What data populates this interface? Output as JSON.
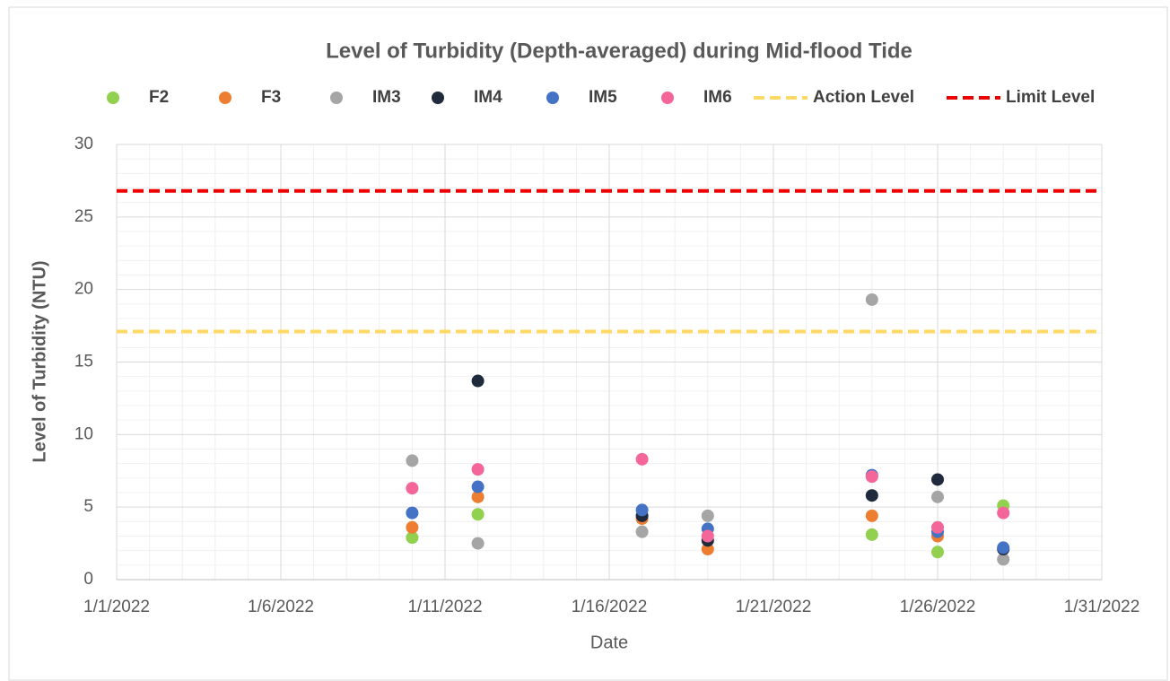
{
  "chart_data": {
    "type": "scatter",
    "title": "Level of Turbidity (Depth-averaged) during Mid-flood Tide",
    "x_label": "Date",
    "y_label": "Level of Turbidity (NTU)",
    "x": [
      "1/10/2022",
      "1/12/2022",
      "1/17/2022",
      "1/19/2022",
      "1/24/2022",
      "1/26/2022",
      "1/28/2022"
    ],
    "series": [
      {
        "name": "F2",
        "color": "#92d050",
        "values": [
          2.9,
          4.5,
          null,
          null,
          3.1,
          1.9,
          5.1
        ]
      },
      {
        "name": "F3",
        "color": "#ed7d31",
        "values": [
          3.6,
          5.7,
          4.2,
          2.1,
          4.4,
          3.0,
          null
        ]
      },
      {
        "name": "IM3",
        "color": "#a5a5a5",
        "values": [
          8.2,
          2.5,
          3.3,
          4.4,
          19.3,
          5.7,
          1.4
        ]
      },
      {
        "name": "IM4",
        "color": "#1f2a3c",
        "values": [
          null,
          13.7,
          4.4,
          2.7,
          5.8,
          6.9,
          2.1
        ]
      },
      {
        "name": "IM5",
        "color": "#4472c4",
        "values": [
          4.6,
          6.4,
          4.8,
          3.5,
          7.2,
          3.3,
          2.2
        ]
      },
      {
        "name": "IM6",
        "color": "#f4669a",
        "values": [
          6.3,
          7.6,
          8.3,
          3.0,
          7.1,
          3.6,
          4.6
        ]
      }
    ],
    "reference_lines": [
      {
        "name": "Action Level",
        "value": 17.1,
        "color": "#ffd966"
      },
      {
        "name": "Limit Level",
        "value": 26.8,
        "color": "#ee0000"
      }
    ],
    "xlim": [
      "1/1/2022",
      "1/31/2022"
    ],
    "xticks": [
      "1/1/2022",
      "1/6/2022",
      "1/11/2022",
      "1/16/2022",
      "1/21/2022",
      "1/26/2022",
      "1/31/2022"
    ],
    "ylim": [
      0,
      30
    ],
    "yticks": [
      0,
      5,
      10,
      15,
      20,
      25,
      30
    ],
    "grid": true,
    "minor_grid": true,
    "legend": "top"
  }
}
